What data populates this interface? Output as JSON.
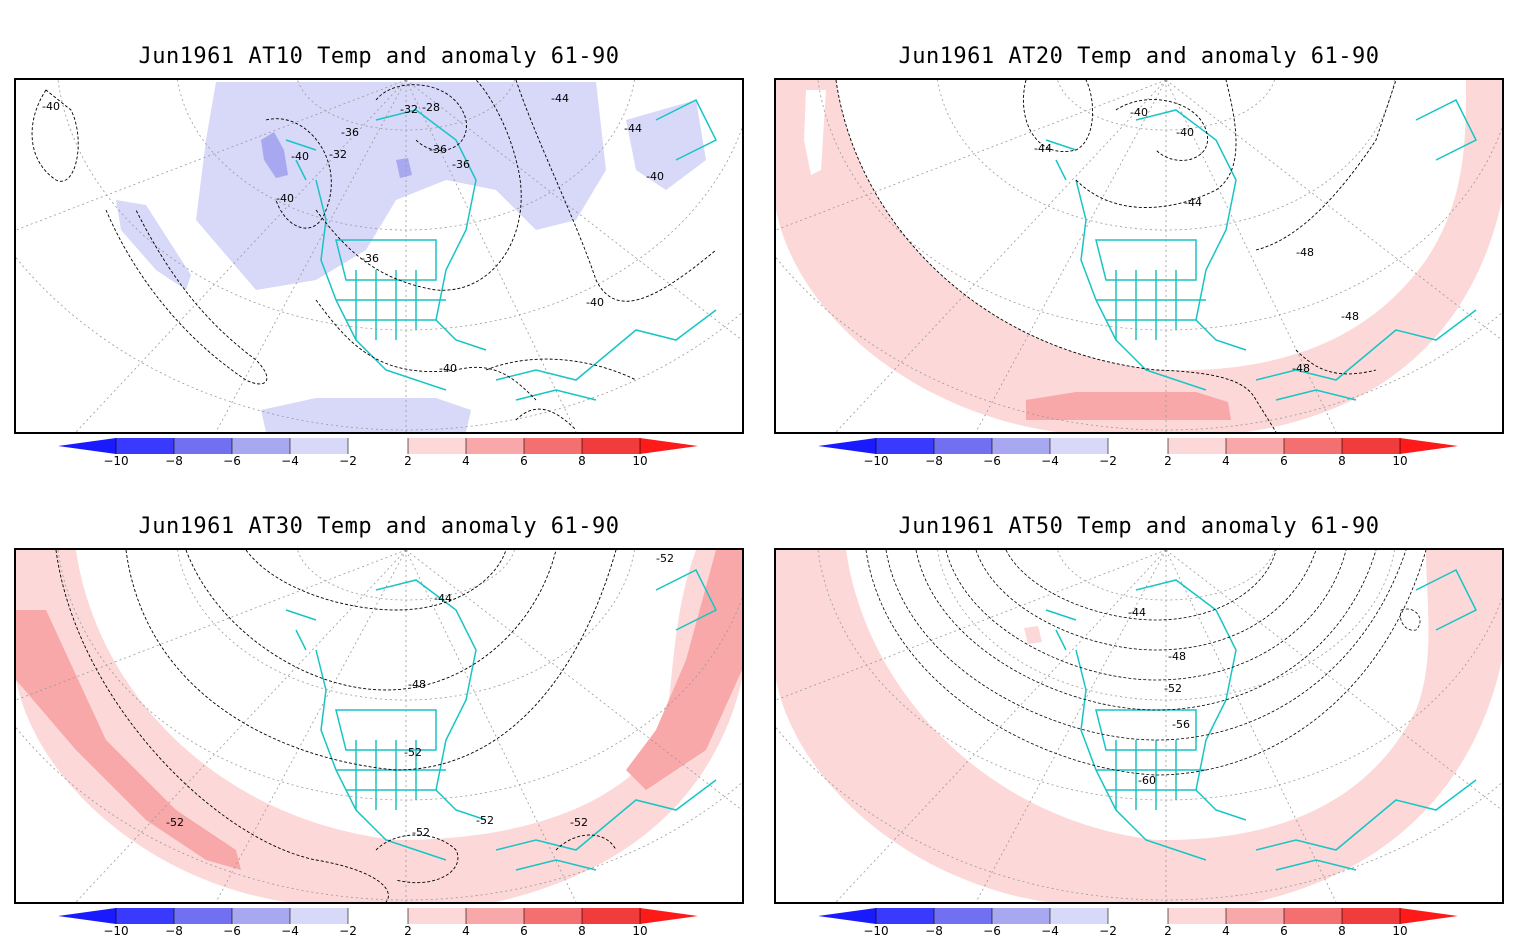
{
  "colorbar": {
    "ticks": [
      "−10",
      "−8",
      "−6",
      "−4",
      "−2",
      "2",
      "4",
      "6",
      "8",
      "10"
    ],
    "colors": {
      "below_min": "#1a1aff",
      "n10_n8": "#3a3aff",
      "n8_n6": "#7070f0",
      "n6_n4": "#a8a8f0",
      "n4_n2": "#d8d8f8",
      "n2_p2": "#ffffff",
      "p2_p4": "#fcd8d8",
      "p4_p6": "#f8a8a8",
      "p6_p8": "#f47070",
      "p8_p10": "#f03c3c",
      "above_max": "#ff1a1a"
    }
  },
  "coast_color": "#19c4c4",
  "panels": [
    {
      "title": "Jun1961 AT10 Temp and anomaly 61-90",
      "contour_labels": [
        "-40",
        "-32",
        "-28",
        "-36",
        "-44",
        "-40",
        "-36",
        "-36",
        "-40",
        "-40",
        "-44",
        "-32",
        "-40",
        "-36",
        "-40"
      ]
    },
    {
      "title": "Jun1961 AT20 Temp and anomaly 61-90",
      "contour_labels": [
        "-40",
        "-40",
        "-44",
        "-44",
        "-48",
        "-48",
        "-48"
      ]
    },
    {
      "title": "Jun1961 AT30 Temp and anomaly 61-90",
      "contour_labels": [
        "-52",
        "-44",
        "-48",
        "-52",
        "-52",
        "-52",
        "-52",
        "-52"
      ]
    },
    {
      "title": "Jun1961 AT50 Temp and anomaly 61-90",
      "contour_labels": [
        "-44",
        "-48",
        "-52",
        "-56",
        "-60"
      ]
    }
  ]
}
